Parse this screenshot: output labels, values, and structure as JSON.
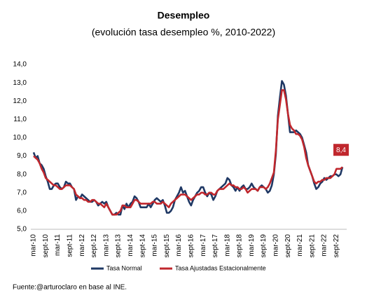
{
  "chart_data": {
    "type": "line",
    "title": "Desempleo",
    "subtitle": "(evolución tasa desempleo %, 2010-2022)",
    "categories": [
      "mar-10",
      null,
      null,
      null,
      null,
      null,
      "sept-10",
      null,
      null,
      null,
      null,
      null,
      "mar-11",
      null,
      null,
      null,
      null,
      null,
      "sept-11",
      null,
      null,
      null,
      null,
      null,
      "mar-12",
      null,
      null,
      null,
      null,
      null,
      "sept-12",
      null,
      null,
      null,
      null,
      null,
      "mar-13",
      null,
      null,
      null,
      null,
      null,
      "sept-13",
      null,
      null,
      null,
      null,
      null,
      "mar-14",
      null,
      null,
      null,
      null,
      null,
      "sept-14",
      null,
      null,
      null,
      null,
      null,
      "mar-15",
      null,
      null,
      null,
      null,
      null,
      "sept-15",
      null,
      null,
      null,
      null,
      null,
      "mar-16",
      null,
      null,
      null,
      null,
      null,
      "sept-16",
      null,
      null,
      null,
      null,
      null,
      "mar-17",
      null,
      null,
      null,
      null,
      null,
      "sept-17",
      null,
      null,
      null,
      null,
      null,
      "mar-18",
      null,
      null,
      null,
      null,
      null,
      "sept-18",
      null,
      null,
      null,
      null,
      null,
      "mar-19",
      null,
      null,
      null,
      null,
      null,
      "sept-19",
      null,
      null,
      null,
      null,
      null,
      "mar-20",
      null,
      null,
      null,
      null,
      null,
      "sept-20",
      null,
      null,
      null,
      null,
      null,
      "mar-21",
      null,
      null,
      null,
      null,
      null,
      "sept-21",
      null,
      null,
      null,
      null,
      null,
      "mar-22",
      null,
      null,
      null,
      null,
      null,
      "sept-22",
      null,
      null,
      null
    ],
    "series": [
      {
        "name": "Tasa Normal",
        "color": "#1f3864",
        "values": [
          9.2,
          8.9,
          9.0,
          8.6,
          8.5,
          8.3,
          7.9,
          7.6,
          7.2,
          7.2,
          7.4,
          7.5,
          7.5,
          7.3,
          7.2,
          7.3,
          7.6,
          7.5,
          7.5,
          7.3,
          7.2,
          6.6,
          6.8,
          6.7,
          6.9,
          6.8,
          6.7,
          6.6,
          6.5,
          6.5,
          6.6,
          6.5,
          6.3,
          6.4,
          6.5,
          6.4,
          6.5,
          6.2,
          6.0,
          5.8,
          5.8,
          5.9,
          5.8,
          5.8,
          6.3,
          6.1,
          6.4,
          6.2,
          6.4,
          6.5,
          6.8,
          6.7,
          6.5,
          6.2,
          6.2,
          6.2,
          6.2,
          6.4,
          6.2,
          6.4,
          6.6,
          6.7,
          6.6,
          6.5,
          6.6,
          6.3,
          5.9,
          5.9,
          6.0,
          6.2,
          6.6,
          6.8,
          7.0,
          7.3,
          7.0,
          7.1,
          6.8,
          6.5,
          6.3,
          6.6,
          6.8,
          7.0,
          7.1,
          7.3,
          7.3,
          7.0,
          6.8,
          7.0,
          6.9,
          6.6,
          6.8,
          7.1,
          7.2,
          7.3,
          7.4,
          7.5,
          7.8,
          7.7,
          7.4,
          7.3,
          7.1,
          7.3,
          7.1,
          7.3,
          7.4,
          7.2,
          7.2,
          7.3,
          7.5,
          7.3,
          7.2,
          7.1,
          7.3,
          7.4,
          7.3,
          7.2,
          7.0,
          7.1,
          7.4,
          8.0,
          9.1,
          11.2,
          12.2,
          13.1,
          12.9,
          12.3,
          11.3,
          10.3,
          10.3,
          10.3,
          10.4,
          10.3,
          10.2,
          10.0,
          9.6,
          9.2,
          8.5,
          8.2,
          7.9,
          7.5,
          7.2,
          7.3,
          7.5,
          7.6,
          7.8,
          7.7,
          7.8,
          7.9,
          7.9,
          8.0,
          8.0,
          7.9,
          8.0,
          8.4
        ]
      },
      {
        "name": "Tasa Ajustadas Estacionalmente",
        "color": "#c0272d",
        "end_label": "8,4",
        "values": [
          9.0,
          8.9,
          8.8,
          8.6,
          8.3,
          8.1,
          7.8,
          7.7,
          7.6,
          7.5,
          7.4,
          7.4,
          7.3,
          7.2,
          7.2,
          7.3,
          7.4,
          7.4,
          7.4,
          7.3,
          7.2,
          6.9,
          6.8,
          6.7,
          6.7,
          6.6,
          6.6,
          6.5,
          6.5,
          6.6,
          6.6,
          6.5,
          6.4,
          6.4,
          6.3,
          6.2,
          6.4,
          6.2,
          6.0,
          5.8,
          5.8,
          5.8,
          5.9,
          6.0,
          6.3,
          6.3,
          6.2,
          6.2,
          6.2,
          6.4,
          6.6,
          6.6,
          6.5,
          6.4,
          6.4,
          6.4,
          6.4,
          6.4,
          6.4,
          6.5,
          6.5,
          6.4,
          6.4,
          6.4,
          6.5,
          6.4,
          6.3,
          6.2,
          6.4,
          6.5,
          6.6,
          6.7,
          6.8,
          6.9,
          6.9,
          6.9,
          6.8,
          6.7,
          6.6,
          6.7,
          6.8,
          6.9,
          6.9,
          7.0,
          7.0,
          6.9,
          6.9,
          7.0,
          7.0,
          6.9,
          6.9,
          7.1,
          7.2,
          7.2,
          7.2,
          7.3,
          7.4,
          7.5,
          7.4,
          7.4,
          7.3,
          7.3,
          7.2,
          7.2,
          7.3,
          7.2,
          7.0,
          7.1,
          7.2,
          7.2,
          7.2,
          7.1,
          7.3,
          7.3,
          7.3,
          7.2,
          7.3,
          7.5,
          7.8,
          8.1,
          9.3,
          11.0,
          11.8,
          12.6,
          12.6,
          12.1,
          11.3,
          10.7,
          10.5,
          10.4,
          10.2,
          10.2,
          10.1,
          9.9,
          9.5,
          8.9,
          8.5,
          8.2,
          7.9,
          7.6,
          7.5,
          7.6,
          7.6,
          7.7,
          7.7,
          7.8,
          7.8,
          7.8,
          7.9,
          8.0,
          8.3,
          8.3,
          8.3,
          8.4
        ]
      }
    ],
    "ylim": [
      5,
      14
    ],
    "yticks": [
      {
        "value": 5,
        "label": "5,0"
      },
      {
        "value": 6,
        "label": "6,0"
      },
      {
        "value": 7,
        "label": "7,0"
      },
      {
        "value": 8,
        "label": "8,0"
      },
      {
        "value": 9,
        "label": "9,0"
      },
      {
        "value": 10,
        "label": "10,0"
      },
      {
        "value": 11,
        "label": "11,0"
      },
      {
        "value": 12,
        "label": "12,0"
      },
      {
        "value": 13,
        "label": "13,0"
      },
      {
        "value": 14,
        "label": "14,0"
      }
    ],
    "grid": false,
    "legend": "bottom",
    "source": "Fuente:@arturoclaro en base al INE."
  }
}
